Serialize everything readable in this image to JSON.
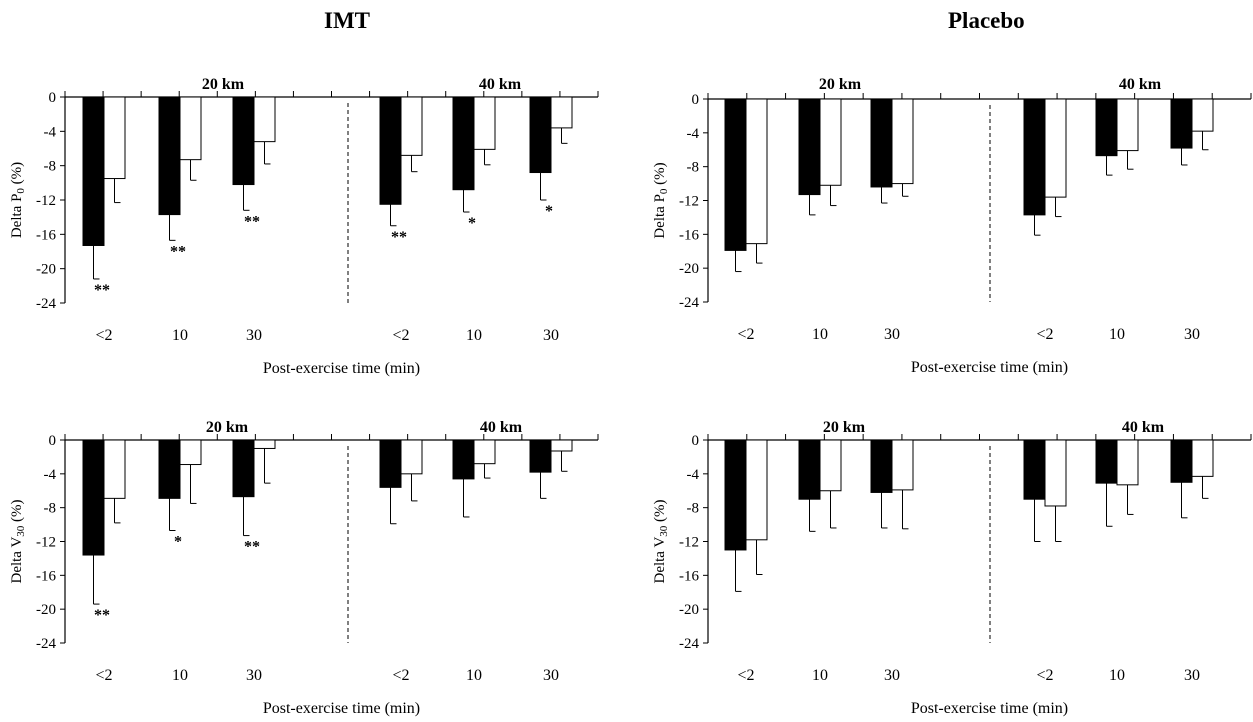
{
  "titles": {
    "left": "IMT",
    "right": "Placebo"
  },
  "chart_data": [
    {
      "type": "bar",
      "column": "IMT",
      "ylabel_pre": "Delta P",
      "ylabel_sub": "0",
      "ylabel_post": " (%)",
      "xlabel": "Post-exercise time (min)",
      "ylim": [
        -24,
        0
      ],
      "yticks": [
        "0",
        "-4",
        "-8",
        "-12",
        "-16",
        "-20",
        "-24"
      ],
      "groups": [
        {
          "label": "20 km",
          "categories": [
            "<2",
            "10",
            "30"
          ],
          "black": [
            -17.3,
            -13.7,
            -10.2
          ],
          "black_err": [
            3.9,
            3.0,
            3.0
          ],
          "white": [
            -9.5,
            -7.3,
            -5.2
          ],
          "white_err": [
            2.8,
            2.4,
            2.6
          ],
          "marks": [
            "**",
            "**",
            "**"
          ]
        },
        {
          "label": "40 km",
          "categories": [
            "<2",
            "10",
            "30"
          ],
          "black": [
            -12.5,
            -10.8,
            -8.8
          ],
          "black_err": [
            2.5,
            2.6,
            3.2
          ],
          "white": [
            -6.8,
            -6.1,
            -3.6
          ],
          "white_err": [
            1.9,
            1.8,
            1.8
          ],
          "marks": [
            "**",
            "*",
            "*"
          ]
        }
      ]
    },
    {
      "type": "bar",
      "column": "Placebo",
      "ylabel_pre": "Delta P",
      "ylabel_sub": "0",
      "ylabel_post": " (%)",
      "xlabel": "Post-exercise time (min)",
      "ylim": [
        -24,
        0
      ],
      "yticks": [
        "0",
        "-4",
        "-8",
        "-12",
        "-16",
        "-20",
        "-24"
      ],
      "groups": [
        {
          "label": "20 km",
          "categories": [
            "<2",
            "10",
            "30"
          ],
          "black": [
            -17.9,
            -11.3,
            -10.4
          ],
          "black_err": [
            2.5,
            2.4,
            1.9
          ],
          "white": [
            -17.1,
            -10.2,
            -10.0
          ],
          "white_err": [
            2.3,
            2.4,
            1.5
          ],
          "marks": [
            "",
            "",
            ""
          ]
        },
        {
          "label": "40 km",
          "categories": [
            "<2",
            "10",
            "30"
          ],
          "black": [
            -13.7,
            -6.7,
            -5.8
          ],
          "black_err": [
            2.4,
            2.3,
            2.0
          ],
          "white": [
            -11.6,
            -6.1,
            -3.8
          ],
          "white_err": [
            2.3,
            2.2,
            2.2
          ],
          "marks": [
            "",
            "",
            ""
          ]
        }
      ]
    },
    {
      "type": "bar",
      "column": "IMT",
      "ylabel_pre": "Delta V",
      "ylabel_sub": "30",
      "ylabel_post": " (%)",
      "xlabel": "Post-exercise time (min)",
      "ylim": [
        -24,
        0
      ],
      "yticks": [
        "0",
        "-4",
        "-8",
        "-12",
        "-16",
        "-20",
        "-24"
      ],
      "groups": [
        {
          "label": "20 km",
          "categories": [
            "<2",
            "10",
            "30"
          ],
          "black": [
            -13.6,
            -6.9,
            -6.7
          ],
          "black_err": [
            5.8,
            3.8,
            4.6
          ],
          "white": [
            -6.9,
            -2.9,
            -1.0
          ],
          "white_err": [
            2.9,
            4.6,
            4.1
          ],
          "marks": [
            "**",
            "*",
            "**"
          ]
        },
        {
          "label": "40 km",
          "categories": [
            "<2",
            "10",
            "30"
          ],
          "black": [
            -5.6,
            -4.6,
            -3.8
          ],
          "black_err": [
            4.3,
            4.5,
            3.1
          ],
          "white": [
            -4.0,
            -2.8,
            -1.3
          ],
          "white_err": [
            3.2,
            1.7,
            2.4
          ],
          "marks": [
            "",
            "",
            ""
          ]
        }
      ]
    },
    {
      "type": "bar",
      "column": "Placebo",
      "ylabel_pre": "Delta V",
      "ylabel_sub": "30",
      "ylabel_post": " (%)",
      "xlabel": "Post-exercise time (min)",
      "ylim": [
        -24,
        0
      ],
      "yticks": [
        "0",
        "-4",
        "-8",
        "-12",
        "-16",
        "-20",
        "-24"
      ],
      "groups": [
        {
          "label": "20 km",
          "categories": [
            "<2",
            "10",
            "30"
          ],
          "black": [
            -13.0,
            -7.0,
            -6.2
          ],
          "black_err": [
            4.9,
            3.8,
            4.2
          ],
          "white": [
            -11.8,
            -6.0,
            -5.9
          ],
          "white_err": [
            4.1,
            4.4,
            4.6
          ],
          "marks": [
            "",
            "",
            ""
          ]
        },
        {
          "label": "40 km",
          "categories": [
            "<2",
            "10",
            "30"
          ],
          "black": [
            -7.0,
            -5.1,
            -5.0
          ],
          "black_err": [
            5.0,
            5.1,
            4.2
          ],
          "white": [
            -7.8,
            -5.3,
            -4.3
          ],
          "white_err": [
            4.2,
            3.5,
            2.6
          ],
          "marks": [
            "",
            "",
            ""
          ]
        }
      ]
    }
  ]
}
